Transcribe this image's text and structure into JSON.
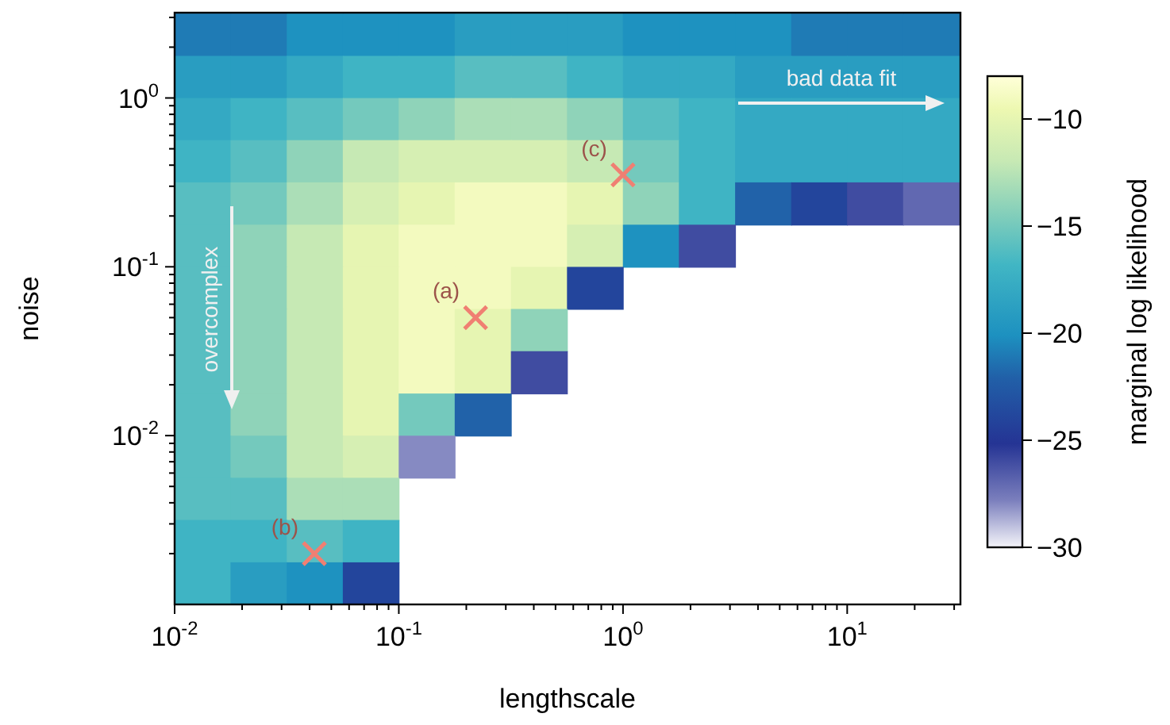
{
  "chart_data": {
    "type": "heatmap",
    "xlabel": "lengthscale",
    "ylabel": "noise",
    "clabel": "marginal log likelihood",
    "log": "xy",
    "xlim": [
      0.01,
      32
    ],
    "ylim": [
      0.001,
      3.2
    ],
    "xticks": [
      {
        "value": 0.01,
        "label": "10$^{-2}$"
      },
      {
        "value": 0.02,
        "label": null
      },
      {
        "value": 0.03,
        "label": null
      },
      {
        "value": 0.04,
        "label": null
      },
      {
        "value": 0.05,
        "label": null
      },
      {
        "value": 0.06,
        "label": null
      },
      {
        "value": 0.07,
        "label": null
      },
      {
        "value": 0.08,
        "label": null
      },
      {
        "value": 0.09,
        "label": null
      },
      {
        "value": 0.1,
        "label": "10$^{-1}$"
      },
      {
        "value": 0.2,
        "label": null
      },
      {
        "value": 0.3,
        "label": null
      },
      {
        "value": 0.4,
        "label": null
      },
      {
        "value": 0.5,
        "label": null
      },
      {
        "value": 0.6,
        "label": null
      },
      {
        "value": 0.7,
        "label": null
      },
      {
        "value": 0.8,
        "label": null
      },
      {
        "value": 0.9,
        "label": null
      },
      {
        "value": 1,
        "label": "10$^{0}$"
      },
      {
        "value": 2,
        "label": null
      },
      {
        "value": 3,
        "label": null
      },
      {
        "value": 4,
        "label": null
      },
      {
        "value": 5,
        "label": null
      },
      {
        "value": 6,
        "label": null
      },
      {
        "value": 7,
        "label": null
      },
      {
        "value": 8,
        "label": null
      },
      {
        "value": 9,
        "label": null
      },
      {
        "value": 10,
        "label": "10$^{1}$"
      },
      {
        "value": 20,
        "label": null
      },
      {
        "value": 30,
        "label": null
      }
    ],
    "yticks": [
      {
        "value": 0.002,
        "label": null
      },
      {
        "value": 0.003,
        "label": null
      },
      {
        "value": 0.004,
        "label": null
      },
      {
        "value": 0.005,
        "label": null
      },
      {
        "value": 0.006,
        "label": null
      },
      {
        "value": 0.007,
        "label": null
      },
      {
        "value": 0.008,
        "label": null
      },
      {
        "value": 0.009,
        "label": null
      },
      {
        "value": 0.01,
        "label": "10$^{-2}$"
      },
      {
        "value": 0.02,
        "label": null
      },
      {
        "value": 0.03,
        "label": null
      },
      {
        "value": 0.04,
        "label": null
      },
      {
        "value": 0.05,
        "label": null
      },
      {
        "value": 0.06,
        "label": null
      },
      {
        "value": 0.07,
        "label": null
      },
      {
        "value": 0.08,
        "label": null
      },
      {
        "value": 0.09,
        "label": null
      },
      {
        "value": 0.1,
        "label": "10$^{-1}$"
      },
      {
        "value": 0.2,
        "label": null
      },
      {
        "value": 0.3,
        "label": null
      },
      {
        "value": 0.4,
        "label": null
      },
      {
        "value": 0.5,
        "label": null
      },
      {
        "value": 0.6,
        "label": null
      },
      {
        "value": 0.7,
        "label": null
      },
      {
        "value": 0.8,
        "label": null
      },
      {
        "value": 0.9,
        "label": null
      },
      {
        "value": 1,
        "label": "10$^{0}$"
      },
      {
        "value": 2,
        "label": null
      },
      {
        "value": 3,
        "label": null
      }
    ],
    "clim": [
      -30,
      -8
    ],
    "cticks": [
      {
        "value": -30,
        "label": "−30"
      },
      {
        "value": -25,
        "label": "−25"
      },
      {
        "value": -20,
        "label": "−20"
      },
      {
        "value": -15,
        "label": "−15"
      },
      {
        "value": -10,
        "label": "−10"
      }
    ],
    "x": [
      0.0133,
      0.0237,
      0.0422,
      0.075,
      0.133,
      0.237,
      0.422,
      0.75,
      1.33,
      2.37,
      4.22,
      7.5,
      13.3,
      23.7
    ],
    "y": [
      2.37,
      1.33,
      0.75,
      0.422,
      0.237,
      0.133,
      0.075,
      0.0422,
      0.0237,
      0.0133,
      0.0075,
      0.00422,
      0.00237,
      0.00133
    ],
    "cells": [
      [
        -21,
        -21,
        -20,
        -20,
        -20,
        -19,
        -19,
        -19,
        -20,
        -20,
        -20,
        -21,
        -21,
        -21
      ],
      [
        -19,
        -19,
        -18,
        -17,
        -17,
        -16,
        -16,
        -17,
        -18,
        -18,
        -19,
        -19,
        -19,
        -19
      ],
      [
        -18,
        -17,
        -16,
        -15,
        -14,
        -13,
        -13,
        -14,
        -16,
        -17,
        -18,
        -18,
        -18,
        -18
      ],
      [
        -17,
        -16,
        -14,
        -12,
        -11,
        -11,
        -11,
        -12,
        -15,
        -17,
        -18,
        -18,
        -18,
        -18
      ],
      [
        -16,
        -15,
        -13,
        -11,
        -10,
        -9,
        -9,
        -10,
        -14,
        -17,
        -22,
        -24,
        -26,
        -27
      ],
      [
        -16,
        -14,
        -12,
        -10,
        -9,
        -9,
        -9,
        -11,
        -20,
        -26,
        null,
        null,
        null,
        null
      ],
      [
        -16,
        -14,
        -12,
        -10,
        -9,
        -9,
        -10,
        -24,
        null,
        null,
        null,
        null,
        null,
        null
      ],
      [
        -16,
        -14,
        -12,
        -10,
        -9,
        -10,
        -14,
        null,
        null,
        null,
        null,
        null,
        null,
        null
      ],
      [
        -16,
        -14,
        -12,
        -10,
        -9,
        -10,
        -26,
        null,
        null,
        null,
        null,
        null,
        null,
        null
      ],
      [
        -16,
        -14,
        -12,
        -10,
        -15,
        -22,
        null,
        null,
        null,
        null,
        null,
        null,
        null,
        null
      ],
      [
        -16,
        -15,
        -12,
        -11,
        -28,
        null,
        null,
        null,
        null,
        null,
        null,
        null,
        null,
        null
      ],
      [
        -16,
        -16,
        -13,
        -13,
        null,
        null,
        null,
        null,
        null,
        null,
        null,
        null,
        null,
        null
      ],
      [
        -17,
        -17,
        -16,
        -17,
        null,
        null,
        null,
        null,
        null,
        null,
        null,
        null,
        null,
        null
      ],
      [
        -17,
        -19,
        -20,
        -24,
        null,
        null,
        null,
        null,
        null,
        null,
        null,
        null,
        null,
        null
      ]
    ],
    "series": [
      {
        "type": "scatter",
        "marker": "cross",
        "color": "#f07f72",
        "x": [
          0.22,
          0.042,
          1.0
        ],
        "values": [
          0.05,
          0.002,
          0.35
        ]
      }
    ],
    "annotations": [
      {
        "text": "(a)",
        "x": 0.22,
        "y": 0.05
      },
      {
        "text": "(b)",
        "x": 0.042,
        "y": 0.002
      },
      {
        "text": "(c)",
        "x": 1.0,
        "y": 0.35
      },
      "bad data fit",
      "overcomplex"
    ]
  }
}
